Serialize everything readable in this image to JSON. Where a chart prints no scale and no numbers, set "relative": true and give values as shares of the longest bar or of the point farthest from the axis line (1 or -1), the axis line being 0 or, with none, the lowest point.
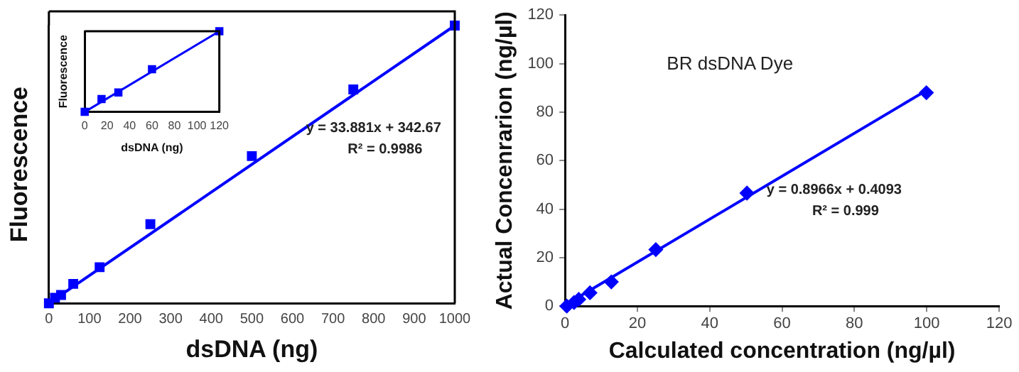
{
  "chart_data": [
    {
      "type": "scatter",
      "xlabel": "dsDNA (ng)",
      "ylabel": "Fluorescence",
      "relative": true,
      "tick_labels": "x",
      "xlim": [
        0,
        1000
      ],
      "xticks": [
        0,
        100,
        200,
        300,
        400,
        500,
        600,
        700,
        800,
        900,
        1000
      ],
      "series": [
        {
          "type": "scatter",
          "color": "#0000ff",
          "marker": "square",
          "x": [
            0,
            15,
            30,
            60,
            125,
            250,
            500,
            750,
            1000
          ],
          "values": [
            0,
            0.02,
            0.03,
            0.07,
            0.13,
            0.285,
            0.53,
            0.77,
            1
          ]
        },
        {
          "type": "line",
          "color": "#0000ff",
          "marker": "none",
          "x": [
            0,
            1000
          ],
          "values": [
            0,
            1
          ]
        }
      ],
      "annotations": [
        "y = 33.881x + 342.67",
        "R² = 0.9986"
      ]
    },
    {
      "type": "scatter",
      "xlabel": "dsDNA (ng)",
      "ylabel": "Fluorescence",
      "relative": true,
      "tick_labels": "x",
      "xlim": [
        0,
        120
      ],
      "xticks": [
        0,
        20,
        40,
        60,
        80,
        100,
        120
      ],
      "series": [
        {
          "type": "scatter",
          "color": "#0000ff",
          "marker": "square",
          "x": [
            0,
            15,
            30,
            60,
            120
          ],
          "values": [
            0,
            0.16,
            0.24,
            0.53,
            1
          ]
        },
        {
          "type": "line",
          "color": "#0000ff",
          "marker": "none",
          "x": [
            0,
            120
          ],
          "values": [
            0,
            1
          ]
        }
      ]
    },
    {
      "type": "scatter",
      "title": "BR dsDNA Dye",
      "xlabel": "Calculated concentration (ng/µl)",
      "ylabel": "Actual Concenrarion (ng/µl)",
      "xlim": [
        0,
        120
      ],
      "xticks": [
        0,
        20,
        40,
        60,
        80,
        100,
        120
      ],
      "ylim": [
        0,
        120
      ],
      "yticks": [
        0,
        20,
        40,
        60,
        80,
        100,
        120
      ],
      "series": [
        {
          "type": "scatter",
          "color": "#0000ff",
          "marker": "diamond",
          "x": [
            0.5,
            2.5,
            3.8,
            6.9,
            12.8,
            25.1,
            50.3,
            99.9
          ],
          "values": [
            0,
            1.5,
            2.8,
            5.5,
            10,
            23.3,
            46.6,
            88
          ]
        },
        {
          "type": "line",
          "color": "#0000ff",
          "marker": "none",
          "x": [
            0,
            100
          ],
          "values": [
            0.4,
            89
          ]
        }
      ],
      "annotations": [
        "y = 0.8966x + 0.4093",
        "R² = 0.999"
      ]
    }
  ]
}
